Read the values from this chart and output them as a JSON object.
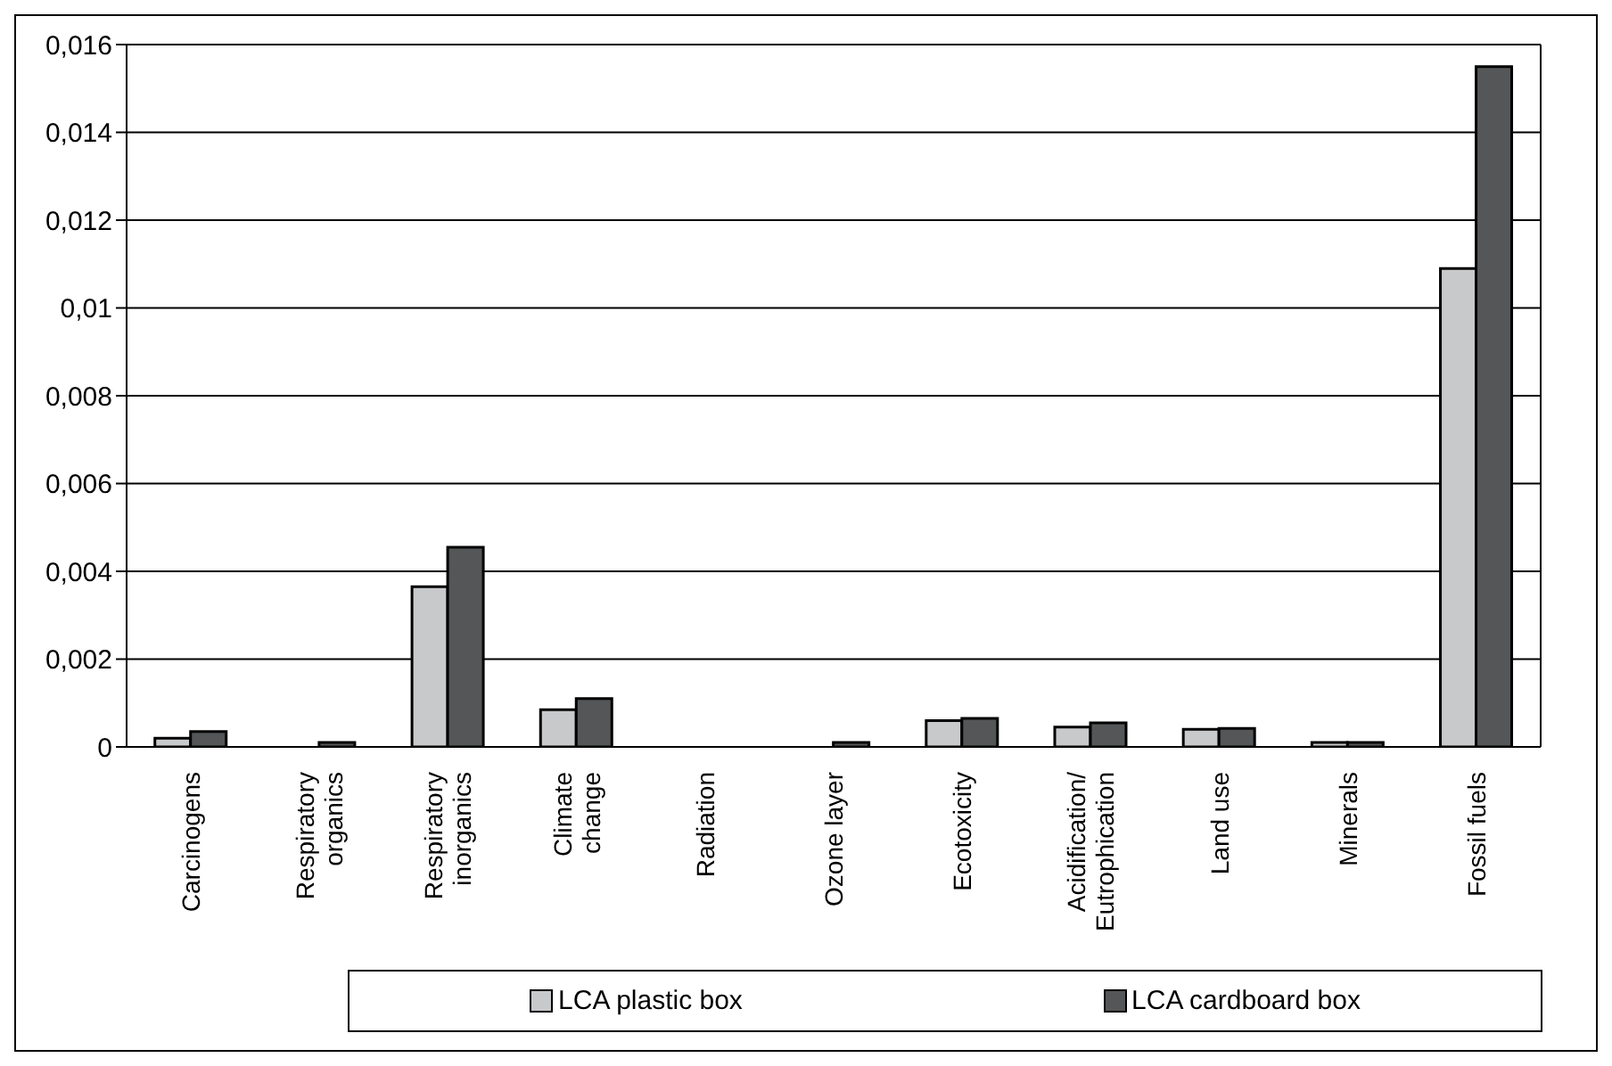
{
  "chart_data": {
    "type": "bar",
    "categories": [
      "Carcinogens",
      "Respiratory\norganics",
      "Respiratory\ninorganics",
      "Climate\nchange",
      "Radiation",
      "Ozone layer",
      "Ecotoxicity",
      "Acidification/\nEutrophication",
      "Land use",
      "Minerals",
      "Fossil fuels"
    ],
    "series": [
      {
        "name": "LCA plastic box",
        "color": "#c8c9cb",
        "values": [
          0.0002,
          0,
          0.00365,
          0.00085,
          0,
          0,
          0.0006,
          0.00045,
          0.0004,
          0.0001,
          0.0109
        ]
      },
      {
        "name": "LCA cardboard box",
        "color": "#545657",
        "values": [
          0.00035,
          0.0001,
          0.00455,
          0.0011,
          0,
          0.0001,
          0.00065,
          0.00055,
          0.00042,
          0.0001,
          0.0155
        ]
      }
    ],
    "ylim": [
      0,
      0.016
    ],
    "yticks": [
      0,
      {
        "value": 0.002,
        "label": "0,002"
      },
      {
        "value": 0.004,
        "label": "0,004"
      },
      {
        "value": 0.006,
        "label": "0,006"
      },
      {
        "value": 0.008,
        "label": "0,008"
      },
      {
        "value": 0.01,
        "label": "0,01"
      },
      {
        "value": 0.012,
        "label": "0,012"
      },
      {
        "value": 0.014,
        "label": "0,014"
      },
      {
        "value": 0.016,
        "label": "0,016"
      }
    ],
    "grid": "y",
    "legend": "bottom"
  }
}
